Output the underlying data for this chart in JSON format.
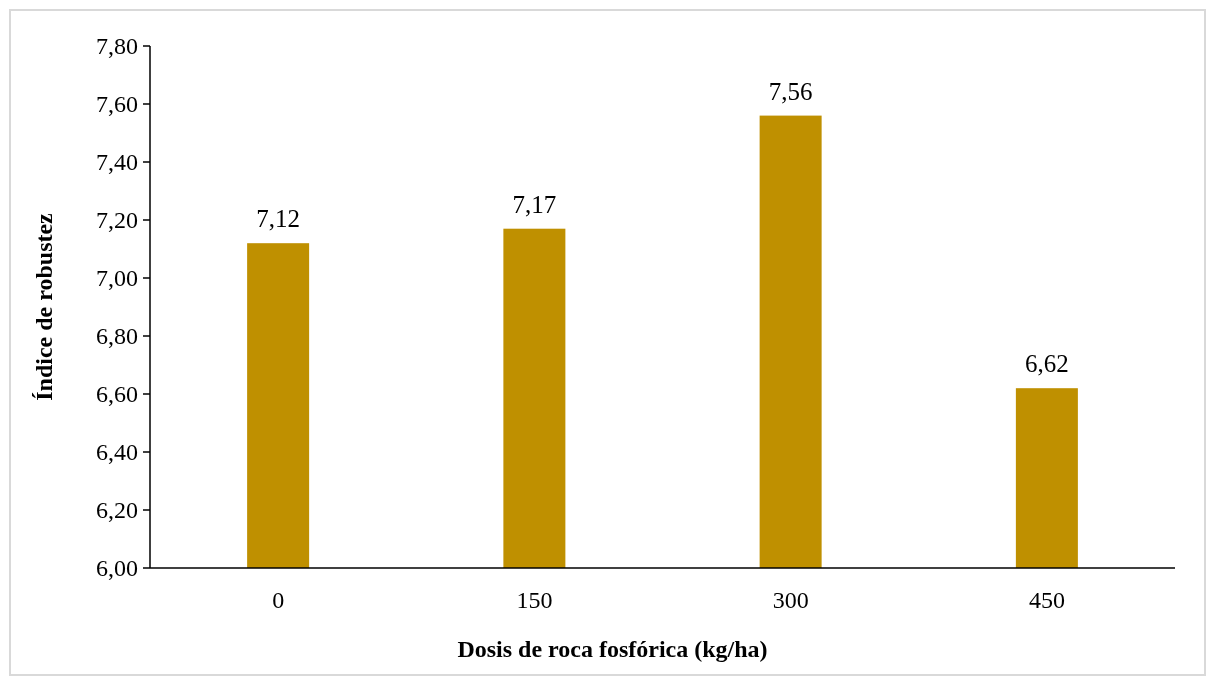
{
  "chart_data": {
    "type": "bar",
    "xlabel": "Dosis de roca fosfórica (kg/ha)",
    "ylabel": "Índice de robustez",
    "categories": [
      "0",
      "150",
      "300",
      "450"
    ],
    "values": [
      7.12,
      7.17,
      7.56,
      6.62
    ],
    "value_labels": [
      "7,12",
      "7,17",
      "7,56",
      "6,62"
    ],
    "color": "#bf9000",
    "ylim": [
      6.0,
      7.8
    ],
    "yticks": [
      {
        "value": 6.0,
        "label": "6,00"
      },
      {
        "value": 6.2,
        "label": "6,20"
      },
      {
        "value": 6.4,
        "label": "6,40"
      },
      {
        "value": 6.6,
        "label": "6,60"
      },
      {
        "value": 6.8,
        "label": "6,80"
      },
      {
        "value": 7.0,
        "label": "7,00"
      },
      {
        "value": 7.2,
        "label": "7,20"
      },
      {
        "value": 7.4,
        "label": "7,40"
      },
      {
        "value": 7.6,
        "label": "7,60"
      },
      {
        "value": 7.8,
        "label": "7,80"
      }
    ],
    "grid": false
  }
}
